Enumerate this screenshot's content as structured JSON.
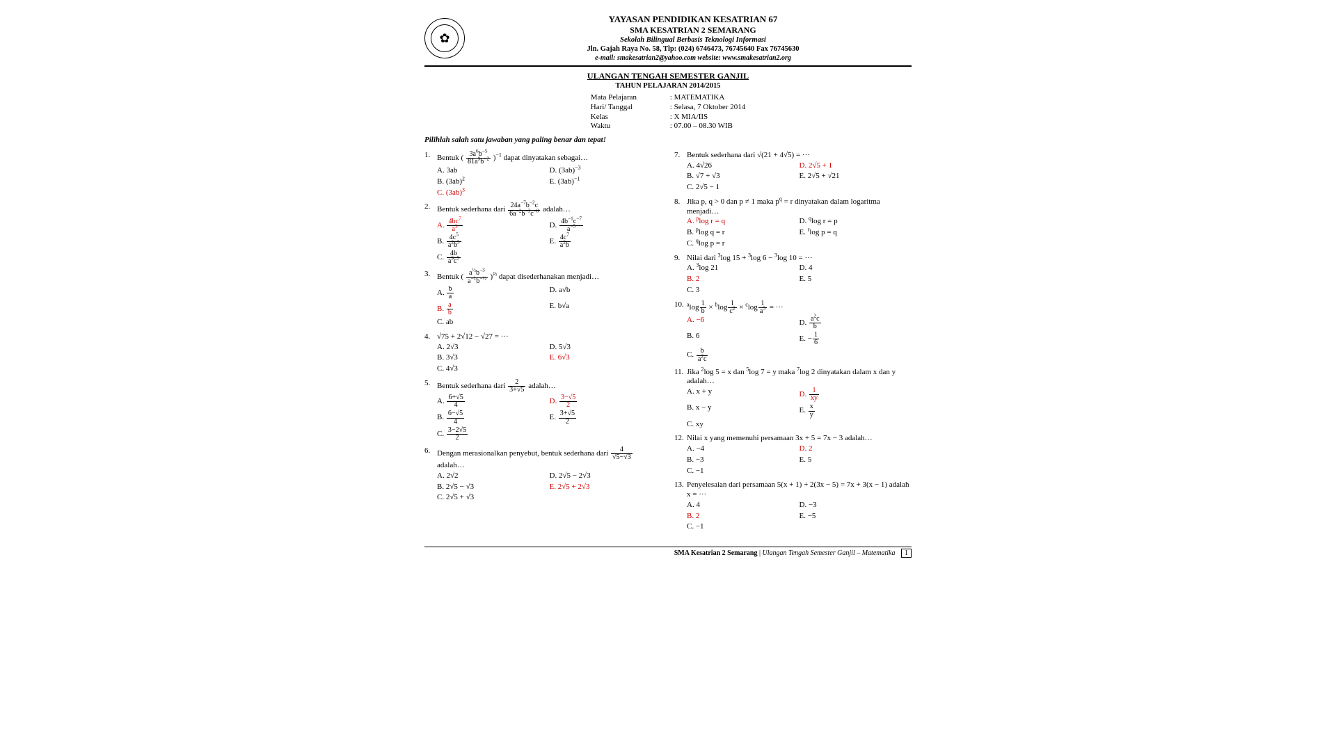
{
  "header": {
    "org": "YAYASAN PENDIDIKAN KESATRIAN 67",
    "school": "SMA KESATRIAN 2 SEMARANG",
    "tagline": "Sekolah Bilingual Berbasis Teknologi Informasi",
    "address": "Jln. Gajah Raya No. 58, Tlp: (024) 6746473, 76745640 Fax 76745630",
    "contact": "e-mail: smakesatrian2@yahoo.com  website: www.smakesatrian2.org"
  },
  "title": {
    "main": "ULANGAN TENGAH SEMESTER GANJIL",
    "sub": "TAHUN PELAJARAN 2014/2015"
  },
  "info": {
    "k1": "Mata Pelajaran",
    "v1": ": MATEMATIKA",
    "k2": "Hari/ Tanggal",
    "v2": ": Selasa, 7 Oktober 2014",
    "k3": "Kelas",
    "v3": ": X MIA/IIS",
    "k4": "Waktu",
    "v4": ": 07.00 – 08.30 WIB"
  },
  "instruction": "Pilihlah salah satu jawaban yang paling benar dan tepat!",
  "questions_left": [
    {
      "num": "1.",
      "text": "Bentuk  ( <span class='frac'><span class='n'>3a<sup>6</sup>b<sup>−5</sup></span><span class='d'>81a<sup>9</sup>b<sup>−2</sup></span></span> )<sup>−1</sup>  dapat  dinyatakan sebagai…",
      "opts": [
        {
          "l": "A. 3ab"
        },
        {
          "l": "D. (3ab)<sup>−3</sup>"
        },
        {
          "l": "B. (3ab)<sup>2</sup>"
        },
        {
          "l": "E. (3ab)<sup>−1</sup>"
        },
        {
          "l": "C. (3ab)<sup>3</sup>",
          "cls": "red"
        }
      ]
    },
    {
      "num": "2.",
      "text": "Bentuk sederhana dari <span class='frac'><span class='n'>24a<sup>−7</sup>b<sup>−2</sup>c</span><span class='d'>6a<sup>−2</sup>b<sup>−3</sup>c<sup>−8</sup></span></span> adalah…",
      "opts": [
        {
          "l": "A. <span class='frac'><span class='n'>4bc<sup>7</sup></span><span class='d'>a<sup>9</sup></span></span>",
          "cls": "red"
        },
        {
          "l": "D. <span class='frac'><span class='n'>4b<sup>−1</sup>c<sup>−7</sup></span><span class='d'>a<sup>−5</sup></span></span>"
        },
        {
          "l": "B. <span class='frac'><span class='n'>4c<sup>5</sup></span><span class='d'>a<sup>2</sup>b<sup>5</sup></span></span>"
        },
        {
          "l": "E. <span class='frac'><span class='n'>4c<sup>7</sup></span><span class='d'>a<sup>2</sup>b</span></span>"
        },
        {
          "l": "C. <span class='frac'><span class='n'>4b</span><span class='d'>a<sup>9</sup>c<sup>5</sup></span></span>"
        }
      ]
    },
    {
      "num": "3.",
      "text": "Bentuk  ( <span class='frac'><span class='n'>a<sup>½</sup>b<sup>−3</sup></span><span class='d'>a<sup>−1</sup>b<sup>−½</sup></span></span> )<sup>⅔</sup>  dapat  disederhanakan menjadi…",
      "opts": [
        {
          "l": "A. <span class='frac'><span class='n'>b</span><span class='d'>a</span></span>"
        },
        {
          "l": "D. a√b"
        },
        {
          "l": "B. <span class='frac'><span class='n'>a</span><span class='d'>b</span></span>",
          "cls": "red"
        },
        {
          "l": "E. b√a"
        },
        {
          "l": "C. ab"
        }
      ]
    },
    {
      "num": "4.",
      "text": "√75 + 2√12 − √27 = ···",
      "opts": [
        {
          "l": "A. 2√3"
        },
        {
          "l": "D. 5√3"
        },
        {
          "l": "B. 3√3"
        },
        {
          "l": "E. 6√3",
          "cls": "red"
        },
        {
          "l": "C. 4√3"
        }
      ]
    },
    {
      "num": "5.",
      "text": "Bentuk sederhana dari <span class='frac'><span class='n'>2</span><span class='d'>3+√5</span></span> adalah…",
      "opts": [
        {
          "l": "A. <span class='frac'><span class='n'>6+√5</span><span class='d'>4</span></span>"
        },
        {
          "l": "D. <span class='frac'><span class='n'>3−√5</span><span class='d'>2</span></span>",
          "cls": "red"
        },
        {
          "l": "B. <span class='frac'><span class='n'>6−√5</span><span class='d'>4</span></span>"
        },
        {
          "l": "E. <span class='frac'><span class='n'>3+√5</span><span class='d'>2</span></span>"
        },
        {
          "l": "C. <span class='frac'><span class='n'>3−2√5</span><span class='d'>2</span></span>"
        }
      ]
    },
    {
      "num": "6.",
      "text": "Dengan merasionalkan penyebut, bentuk sederhana dari <span class='frac'><span class='n'>4</span><span class='d'>√5−√3</span></span> adalah…",
      "opts": [
        {
          "l": "A. 2√2"
        },
        {
          "l": "D. 2√5 − 2√3"
        },
        {
          "l": "B. 2√5 − √3"
        },
        {
          "l": "E. 2√5 + 2√3",
          "cls": "red"
        },
        {
          "l": "C. 2√5 + √3"
        }
      ]
    }
  ],
  "questions_right": [
    {
      "num": "7.",
      "text": "Bentuk sederhana dari √(21 + 4√5) = ···",
      "opts": [
        {
          "l": "A. 4√26"
        },
        {
          "l": "D. 2√5 + 1",
          "cls": "red"
        },
        {
          "l": "B. √7 + √3"
        },
        {
          "l": "E. 2√5 + √21"
        },
        {
          "l": "C. 2√5 − 1"
        }
      ]
    },
    {
      "num": "8.",
      "text": "Jika p, q > 0 dan p ≠ 1 maka p<sup>q</sup> = r dinyatakan dalam logaritma menjadi…",
      "opts": [
        {
          "l": "A. <sup>p</sup>log r = q",
          "cls": "red"
        },
        {
          "l": "D. <sup>q</sup>log r = p"
        },
        {
          "l": "B. <sup>p</sup>log q = r"
        },
        {
          "l": "E. <sup>r</sup>log p = q"
        },
        {
          "l": "C. <sup>q</sup>log p = r"
        }
      ]
    },
    {
      "num": "9.",
      "text": "Nilai dari <sup>3</sup>log 15 + <sup>3</sup>log 6 − <sup>3</sup>log 10 = ···",
      "opts": [
        {
          "l": "A. <sup>3</sup>log 21"
        },
        {
          "l": "D. 4"
        },
        {
          "l": "B. 2",
          "cls": "red"
        },
        {
          "l": "E. 5"
        },
        {
          "l": "C. 3"
        }
      ]
    },
    {
      "num": "10.",
      "text": "<sup>a</sup>log<span class='frac'><span class='n'>1</span><span class='d'>b</span></span> × <sup>b</sup>log<span class='frac'><span class='n'>1</span><span class='d'>c<sup>2</sup></span></span> × <sup>c</sup>log<span class='frac'><span class='n'>1</span><span class='d'>a<sup>3</sup></span></span> = ···",
      "opts": [
        {
          "l": "A. −6",
          "cls": "red"
        },
        {
          "l": "D. <span class='frac'><span class='n'>a<sup>2</sup>c</span><span class='d'>b</span></span>"
        },
        {
          "l": "B. 6"
        },
        {
          "l": "E. −<span class='frac'><span class='n'>1</span><span class='d'>6</span></span>"
        },
        {
          "l": "C. <span class='frac'><span class='n'>b</span><span class='d'>a<sup>2</sup>c</span></span>"
        }
      ]
    },
    {
      "num": "11.",
      "text": "Jika <sup>2</sup>log 5 = x dan <sup>5</sup>log 7 = y maka <sup>7</sup>log 2 dinyatakan dalam x dan y adalah…",
      "opts": [
        {
          "l": "A. x + y"
        },
        {
          "l": "D. <span class='frac'><span class='n'>1</span><span class='d'>xy</span></span>",
          "cls": "red"
        },
        {
          "l": "B. x − y"
        },
        {
          "l": "E. <span class='frac'><span class='n'>x</span><span class='d'>y</span></span>"
        },
        {
          "l": "C. xy"
        }
      ]
    },
    {
      "num": "12.",
      "text": "Nilai x yang memenuhi persamaan 3x + 5 = 7x − 3 adalah…",
      "opts": [
        {
          "l": "A. −4"
        },
        {
          "l": "D. 2",
          "cls": "red"
        },
        {
          "l": "B. −3"
        },
        {
          "l": "E. 5"
        },
        {
          "l": "C. −1"
        }
      ]
    },
    {
      "num": "13.",
      "text": "Penyelesaian dari persamaan 5(x + 1) + 2(3x − 5) = 7x + 3(x − 1) adalah x = ···",
      "opts": [
        {
          "l": "A. 4"
        },
        {
          "l": "D. −3"
        },
        {
          "l": "B. 2",
          "cls": "red"
        },
        {
          "l": "E. −5"
        },
        {
          "l": "C. −1"
        }
      ]
    }
  ],
  "footer": {
    "school": "SMA Kesatrian 2 Semarang",
    "sep": " | ",
    "desc": "Ulangan Tengah Semester Ganjil – Matematika",
    "page": "1"
  }
}
